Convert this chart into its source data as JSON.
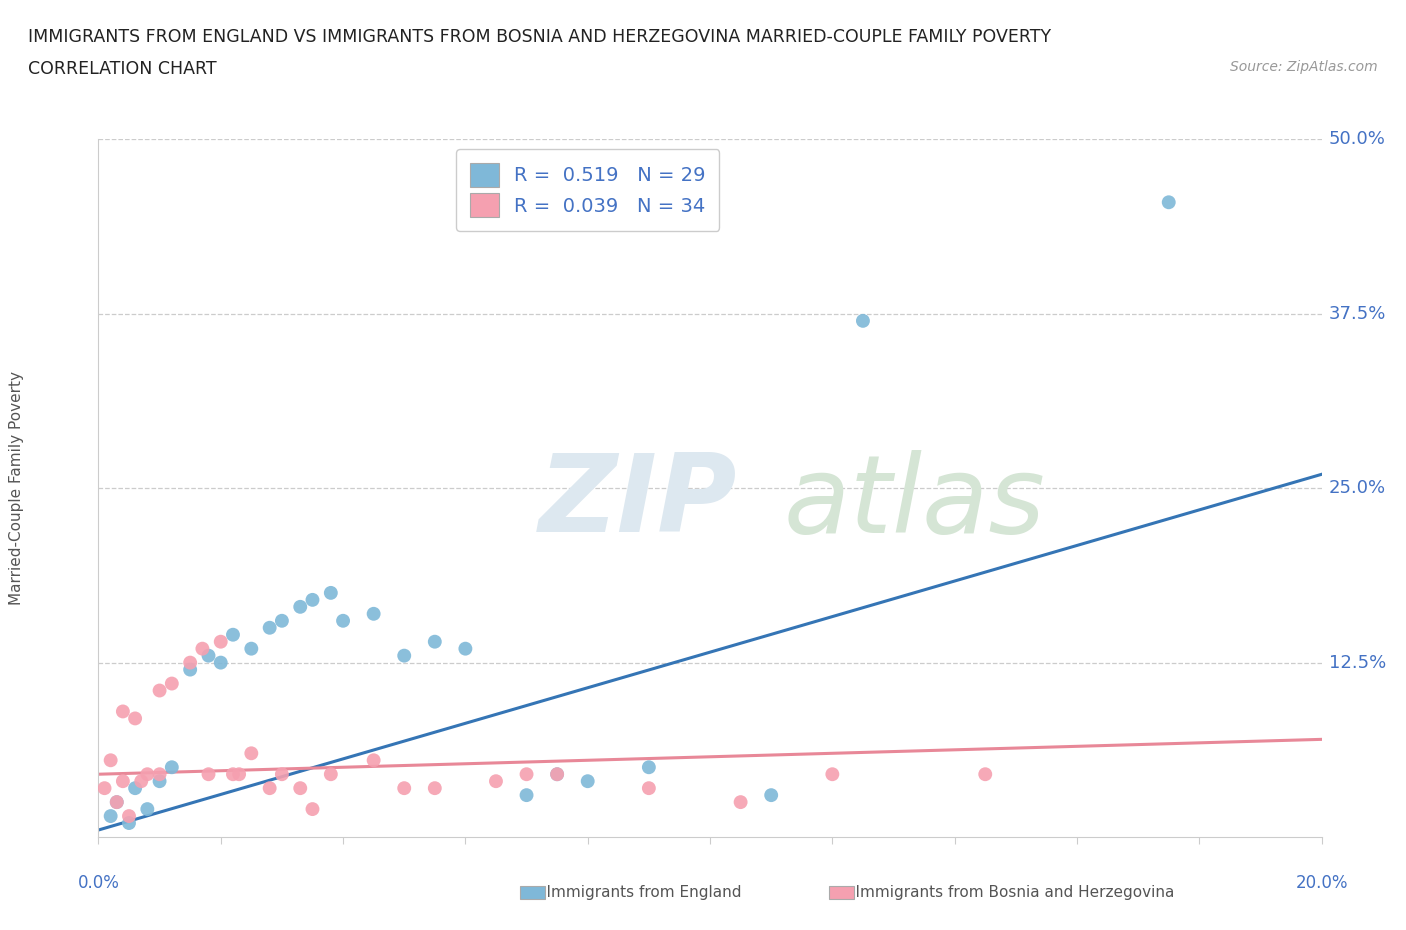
{
  "title_line1": "IMMIGRANTS FROM ENGLAND VS IMMIGRANTS FROM BOSNIA AND HERZEGOVINA MARRIED-COUPLE FAMILY POVERTY",
  "title_line2": "CORRELATION CHART",
  "source": "Source: ZipAtlas.com",
  "ylabel": "Married-Couple Family Poverty",
  "yticks_labels": [
    "12.5%",
    "25.0%",
    "37.5%",
    "50.0%"
  ],
  "ytick_vals": [
    12.5,
    25.0,
    37.5,
    50.0
  ],
  "xlim": [
    0.0,
    20.0
  ],
  "ylim": [
    -2.0,
    55.0
  ],
  "plot_ylim_bottom": 0.0,
  "plot_ylim_top": 50.0,
  "england_color": "#7fb8d8",
  "bosnia_color": "#f5a0b0",
  "england_line_color": "#3575b5",
  "bosnia_line_color": "#e88898",
  "england_R": 0.519,
  "england_N": 29,
  "bosnia_R": 0.039,
  "bosnia_N": 34,
  "legend_label_england": "Immigrants from England",
  "legend_label_bosnia": "Immigrants from Bosnia and Herzegovina",
  "england_line_x0": 0.0,
  "england_line_y0": 0.5,
  "england_line_x1": 20.0,
  "england_line_y1": 26.0,
  "bosnia_line_x0": 0.0,
  "bosnia_line_y0": 4.5,
  "bosnia_line_x1": 20.0,
  "bosnia_line_y1": 7.0,
  "england_scatter_x": [
    0.2,
    0.3,
    0.5,
    0.6,
    0.8,
    1.0,
    1.2,
    1.5,
    1.8,
    2.0,
    2.2,
    2.5,
    2.8,
    3.0,
    3.3,
    3.5,
    3.8,
    4.0,
    4.5,
    5.5,
    6.0,
    7.0,
    8.0,
    9.0,
    11.0,
    12.5,
    17.5,
    7.5,
    5.0
  ],
  "england_scatter_y": [
    1.5,
    2.5,
    1.0,
    3.5,
    2.0,
    4.0,
    5.0,
    12.0,
    13.0,
    12.5,
    14.5,
    13.5,
    15.0,
    15.5,
    16.5,
    17.0,
    17.5,
    15.5,
    16.0,
    14.0,
    13.5,
    3.0,
    4.0,
    5.0,
    3.0,
    37.0,
    45.5,
    4.5,
    13.0
  ],
  "bosnia_scatter_x": [
    0.1,
    0.2,
    0.3,
    0.4,
    0.5,
    0.6,
    0.8,
    1.0,
    1.2,
    1.5,
    1.7,
    2.0,
    2.3,
    2.5,
    2.8,
    3.0,
    3.3,
    3.8,
    4.5,
    5.5,
    6.5,
    7.5,
    9.0,
    10.5,
    12.0,
    14.5,
    0.4,
    0.7,
    1.0,
    1.8,
    2.2,
    3.5,
    5.0,
    7.0
  ],
  "bosnia_scatter_y": [
    3.5,
    5.5,
    2.5,
    4.0,
    1.5,
    8.5,
    4.5,
    10.5,
    11.0,
    12.5,
    13.5,
    14.0,
    4.5,
    6.0,
    3.5,
    4.5,
    3.5,
    4.5,
    5.5,
    3.5,
    4.0,
    4.5,
    3.5,
    2.5,
    4.5,
    4.5,
    9.0,
    4.0,
    4.5,
    4.5,
    4.5,
    2.0,
    3.5,
    4.5
  ],
  "grid_color": "#cccccc",
  "text_color": "#4472c4",
  "label_color": "#555555",
  "spine_color": "#cccccc"
}
